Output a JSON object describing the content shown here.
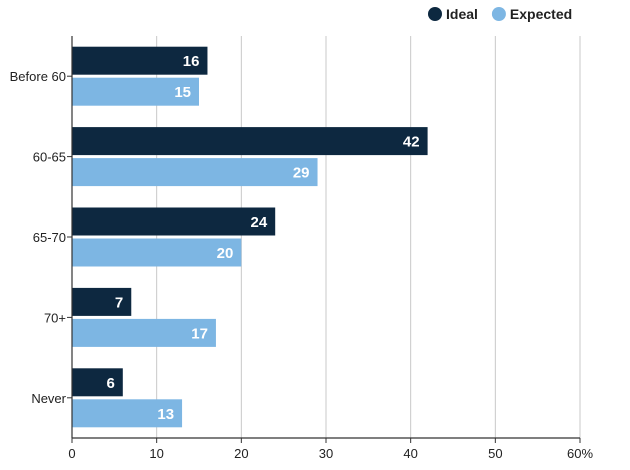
{
  "chart_data": {
    "type": "bar",
    "orientation": "horizontal",
    "categories": [
      "Before 60",
      "60-65",
      "65-70",
      "70+",
      "Never"
    ],
    "series": [
      {
        "name": "Ideal",
        "color": "#0d2840",
        "values": [
          16,
          42,
          24,
          7,
          6
        ]
      },
      {
        "name": "Expected",
        "color": "#7db6e3",
        "values": [
          15,
          29,
          20,
          17,
          13
        ]
      }
    ],
    "xticks": [
      "0",
      "10",
      "20",
      "30",
      "40",
      "50",
      "60%"
    ],
    "xlim": [
      0,
      60
    ],
    "grid": true,
    "legend": "top-right",
    "title": "",
    "xlabel": "",
    "ylabel": ""
  }
}
